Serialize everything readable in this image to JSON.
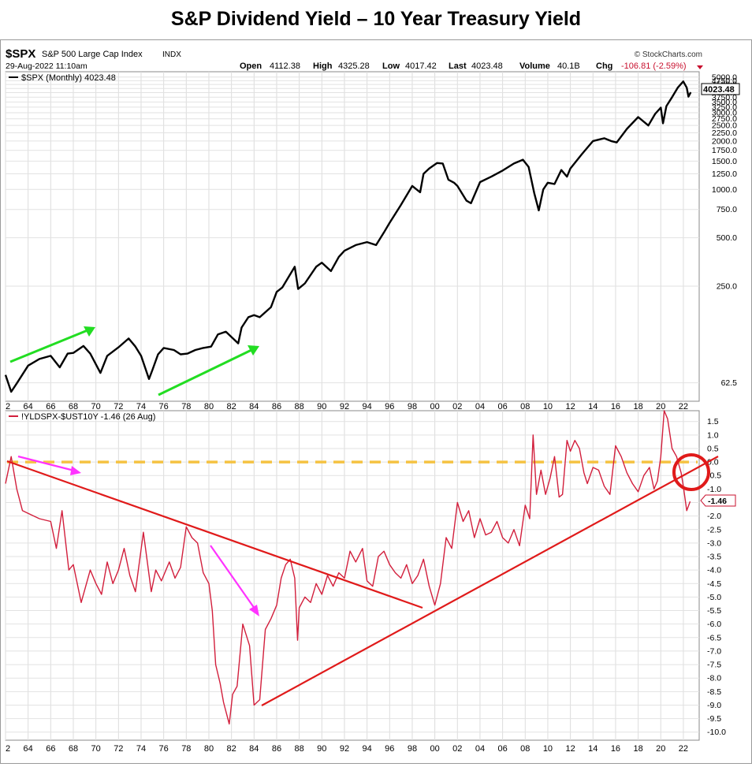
{
  "page_title": "S&P Dividend Yield – 10 Year Treasury Yield",
  "header": {
    "symbol": "$SPX",
    "name": "S&P 500 Large Cap Index",
    "exchange": "INDX",
    "datetime": "29-Aug-2022 11:10am",
    "source": "© StockCharts.com",
    "quote": {
      "open_label": "Open",
      "open": "4112.38",
      "high_label": "High",
      "high": "4325.28",
      "low_label": "Low",
      "low": "4017.42",
      "last_label": "Last",
      "last": "4023.48",
      "volume_label": "Volume",
      "volume": "40.1B",
      "chg_label": "Chg",
      "chg": "-106.81 (-2.59%)"
    }
  },
  "chart_data": [
    {
      "type": "line",
      "scale": "log",
      "legend": "$SPX (Monthly) 4023.48",
      "last_value_label": "4023.48",
      "color": "#000000",
      "x_ticks": [
        "2",
        "64",
        "66",
        "68",
        "70",
        "72",
        "74",
        "76",
        "78",
        "80",
        "82",
        "84",
        "86",
        "88",
        "90",
        "92",
        "94",
        "96",
        "98",
        "00",
        "02",
        "04",
        "06",
        "08",
        "10",
        "12",
        "14",
        "16",
        "18",
        "20",
        "22"
      ],
      "y_ticks": [
        62.5,
        250,
        500,
        750,
        1000,
        1250,
        1500,
        1750,
        2000,
        2250,
        2500,
        2750,
        3000,
        3250,
        3500,
        3750,
        4000,
        4250,
        4500,
        4750,
        5000
      ],
      "y_tick_labels": [
        "62.5",
        "250.0",
        "500.0",
        "750.0",
        "1000.0",
        "1250.0",
        "1500.0",
        "1750.0",
        "2000.0",
        "2250.0",
        "2500.0",
        "2750.0",
        "3000.0",
        "3250.0",
        "3500.0",
        "3750.0",
        "4000.0",
        "4250.0",
        "4500.0",
        "4750.0",
        "5000.0"
      ],
      "ylim": [
        48,
        5400
      ],
      "x": [
        1962.0,
        1962.5,
        1963.0,
        1964.0,
        1965.0,
        1966.0,
        1966.8,
        1967.5,
        1968.0,
        1968.9,
        1969.5,
        1970.4,
        1971.0,
        1972.0,
        1972.9,
        1973.5,
        1974.0,
        1974.7,
        1975.0,
        1975.5,
        1976.0,
        1976.9,
        1977.5,
        1978.1,
        1978.8,
        1979.5,
        1980.2,
        1980.8,
        1981.5,
        1982.6,
        1982.9,
        1983.5,
        1984.0,
        1984.5,
        1985.5,
        1986.0,
        1986.5,
        1987.6,
        1987.9,
        1988.5,
        1989.5,
        1990.0,
        1990.8,
        1991.5,
        1992.0,
        1993.0,
        1994.0,
        1994.8,
        1995.5,
        1996.0,
        1997.0,
        1998.0,
        1998.7,
        1999.0,
        1999.5,
        2000.2,
        2000.7,
        2001.2,
        2001.7,
        2002.0,
        2002.8,
        2003.2,
        2004.0,
        2005.0,
        2006.0,
        2007.0,
        2007.8,
        2008.3,
        2008.8,
        2009.2,
        2009.6,
        2010.0,
        2010.6,
        2011.2,
        2011.7,
        2012.0,
        2013.0,
        2014.0,
        2015.0,
        2015.6,
        2016.1,
        2017.0,
        2018.0,
        2018.9,
        2019.5,
        2020.0,
        2020.2,
        2020.5,
        2021.0,
        2021.5,
        2021.99,
        2022.3,
        2022.45,
        2022.65
      ],
      "y": [
        70,
        55,
        62,
        80,
        88,
        92,
        78,
        95,
        96,
        106,
        95,
        72,
        92,
        104,
        118,
        105,
        92,
        66,
        75,
        94,
        103,
        100,
        94,
        95,
        100,
        103,
        105,
        125,
        130,
        110,
        138,
        160,
        165,
        160,
        185,
        230,
        245,
        330,
        240,
        260,
        330,
        350,
        310,
        380,
        415,
        450,
        470,
        450,
        540,
        620,
        800,
        1050,
        960,
        1250,
        1350,
        1460,
        1450,
        1150,
        1100,
        1050,
        850,
        820,
        1110,
        1200,
        1310,
        1450,
        1530,
        1380,
        950,
        740,
        1000,
        1100,
        1080,
        1320,
        1200,
        1350,
        1650,
        2000,
        2080,
        2000,
        1960,
        2380,
        2820,
        2500,
        2950,
        3230,
        2580,
        3300,
        3750,
        4300,
        4700,
        4300,
        3780,
        4023
      ]
    },
    {
      "type": "line",
      "legend": "!YLDSPX-$UST10Y -1.46 (26 Aug)",
      "last_value_label": "-1.46",
      "color": "#c8102e",
      "x_ticks": [
        "2",
        "64",
        "66",
        "68",
        "70",
        "72",
        "74",
        "76",
        "78",
        "80",
        "82",
        "84",
        "86",
        "88",
        "90",
        "92",
        "94",
        "96",
        "98",
        "00",
        "02",
        "04",
        "06",
        "08",
        "10",
        "12",
        "14",
        "16",
        "18",
        "20",
        "22"
      ],
      "y_ticks": [
        1.5,
        1.0,
        0.5,
        0.0,
        -0.5,
        -1.0,
        -1.5,
        -2.0,
        -2.5,
        -3.0,
        -3.5,
        -4.0,
        -4.5,
        -5.0,
        -5.5,
        -6.0,
        -6.5,
        -7.0,
        -7.5,
        -8.0,
        -8.5,
        -9.0,
        -9.5,
        -10.0
      ],
      "y_tick_labels": [
        "1.5",
        "1.0",
        "0.5",
        "0.0",
        "-0.5",
        "-1.0",
        "-1.5",
        "-2.0",
        "-2.5",
        "-3.0",
        "-3.5",
        "-4.0",
        "-4.5",
        "-5.0",
        "-5.5",
        "-6.0",
        "-6.5",
        "-7.0",
        "-7.5",
        "-8.0",
        "-8.5",
        "-9.0",
        "-9.5",
        "-10.0"
      ],
      "ylim": [
        -10.3,
        1.9
      ],
      "x": [
        1962.0,
        1962.5,
        1963.0,
        1963.5,
        1964.0,
        1965.0,
        1966.0,
        1966.5,
        1967.0,
        1967.6,
        1968.0,
        1968.7,
        1969.5,
        1970.0,
        1970.5,
        1971.0,
        1971.5,
        1972.0,
        1972.5,
        1973.0,
        1973.5,
        1974.2,
        1974.9,
        1975.3,
        1975.8,
        1976.5,
        1977.0,
        1977.5,
        1978.0,
        1978.5,
        1979.0,
        1979.5,
        1980.0,
        1980.3,
        1980.6,
        1981.0,
        1981.3,
        1981.8,
        1982.1,
        1982.5,
        1983.0,
        1983.6,
        1984.0,
        1984.5,
        1985.0,
        1985.5,
        1986.0,
        1986.4,
        1986.8,
        1987.2,
        1987.6,
        1987.85,
        1988.0,
        1988.5,
        1989.0,
        1989.5,
        1990.0,
        1990.5,
        1991.0,
        1991.5,
        1992.0,
        1992.5,
        1993.0,
        1993.6,
        1994.0,
        1994.5,
        1995.0,
        1995.5,
        1996.0,
        1996.5,
        1997.0,
        1997.5,
        1998.0,
        1998.5,
        1999.0,
        1999.5,
        2000.0,
        2000.5,
        2001.0,
        2001.5,
        2002.0,
        2002.5,
        2003.0,
        2003.5,
        2004.0,
        2004.5,
        2005.0,
        2005.5,
        2006.0,
        2006.5,
        2007.0,
        2007.5,
        2008.0,
        2008.4,
        2008.7,
        2009.0,
        2009.4,
        2009.8,
        2010.2,
        2010.6,
        2011.0,
        2011.3,
        2011.7,
        2012.0,
        2012.4,
        2012.8,
        2013.2,
        2013.5,
        2014.0,
        2014.5,
        2015.0,
        2015.5,
        2016.0,
        2016.5,
        2017.0,
        2017.5,
        2018.0,
        2018.5,
        2019.0,
        2019.4,
        2019.7,
        2020.0,
        2020.3,
        2020.6,
        2021.0,
        2021.4,
        2021.8,
        2022.0,
        2022.3,
        2022.6
      ],
      "y": [
        -0.8,
        0.2,
        -1.0,
        -1.8,
        -1.9,
        -2.1,
        -2.2,
        -3.2,
        -1.8,
        -4.0,
        -3.8,
        -5.2,
        -4.0,
        -4.5,
        -4.9,
        -3.7,
        -4.5,
        -4.0,
        -3.2,
        -4.2,
        -4.8,
        -2.6,
        -4.8,
        -4.0,
        -4.4,
        -3.7,
        -4.3,
        -3.9,
        -2.4,
        -2.8,
        -3.0,
        -4.1,
        -4.5,
        -5.5,
        -7.5,
        -8.2,
        -8.9,
        -9.7,
        -8.6,
        -8.3,
        -6.0,
        -6.8,
        -9.0,
        -8.8,
        -6.2,
        -5.8,
        -5.3,
        -4.3,
        -3.8,
        -3.6,
        -4.3,
        -6.6,
        -5.4,
        -5.0,
        -5.2,
        -4.5,
        -4.9,
        -4.2,
        -4.6,
        -4.1,
        -4.3,
        -3.3,
        -3.7,
        -3.2,
        -4.4,
        -4.6,
        -3.5,
        -3.3,
        -3.8,
        -4.1,
        -4.3,
        -3.8,
        -4.5,
        -4.2,
        -3.6,
        -4.6,
        -5.3,
        -4.5,
        -2.8,
        -3.2,
        -1.5,
        -2.2,
        -1.8,
        -2.8,
        -2.1,
        -2.7,
        -2.6,
        -2.2,
        -2.8,
        -3.0,
        -2.5,
        -3.1,
        -1.6,
        -2.1,
        1.0,
        -1.2,
        -0.3,
        -1.2,
        -0.6,
        0.2,
        -1.3,
        -1.2,
        0.8,
        0.4,
        0.8,
        0.5,
        -0.4,
        -0.8,
        -0.2,
        -0.3,
        -0.9,
        -1.2,
        0.6,
        0.2,
        -0.4,
        -0.8,
        -1.1,
        -0.5,
        -0.2,
        -1.0,
        -0.7,
        0.2,
        1.9,
        1.6,
        0.5,
        0.2,
        -0.4,
        -0.9,
        -1.8,
        -1.46
      ]
    }
  ]
}
